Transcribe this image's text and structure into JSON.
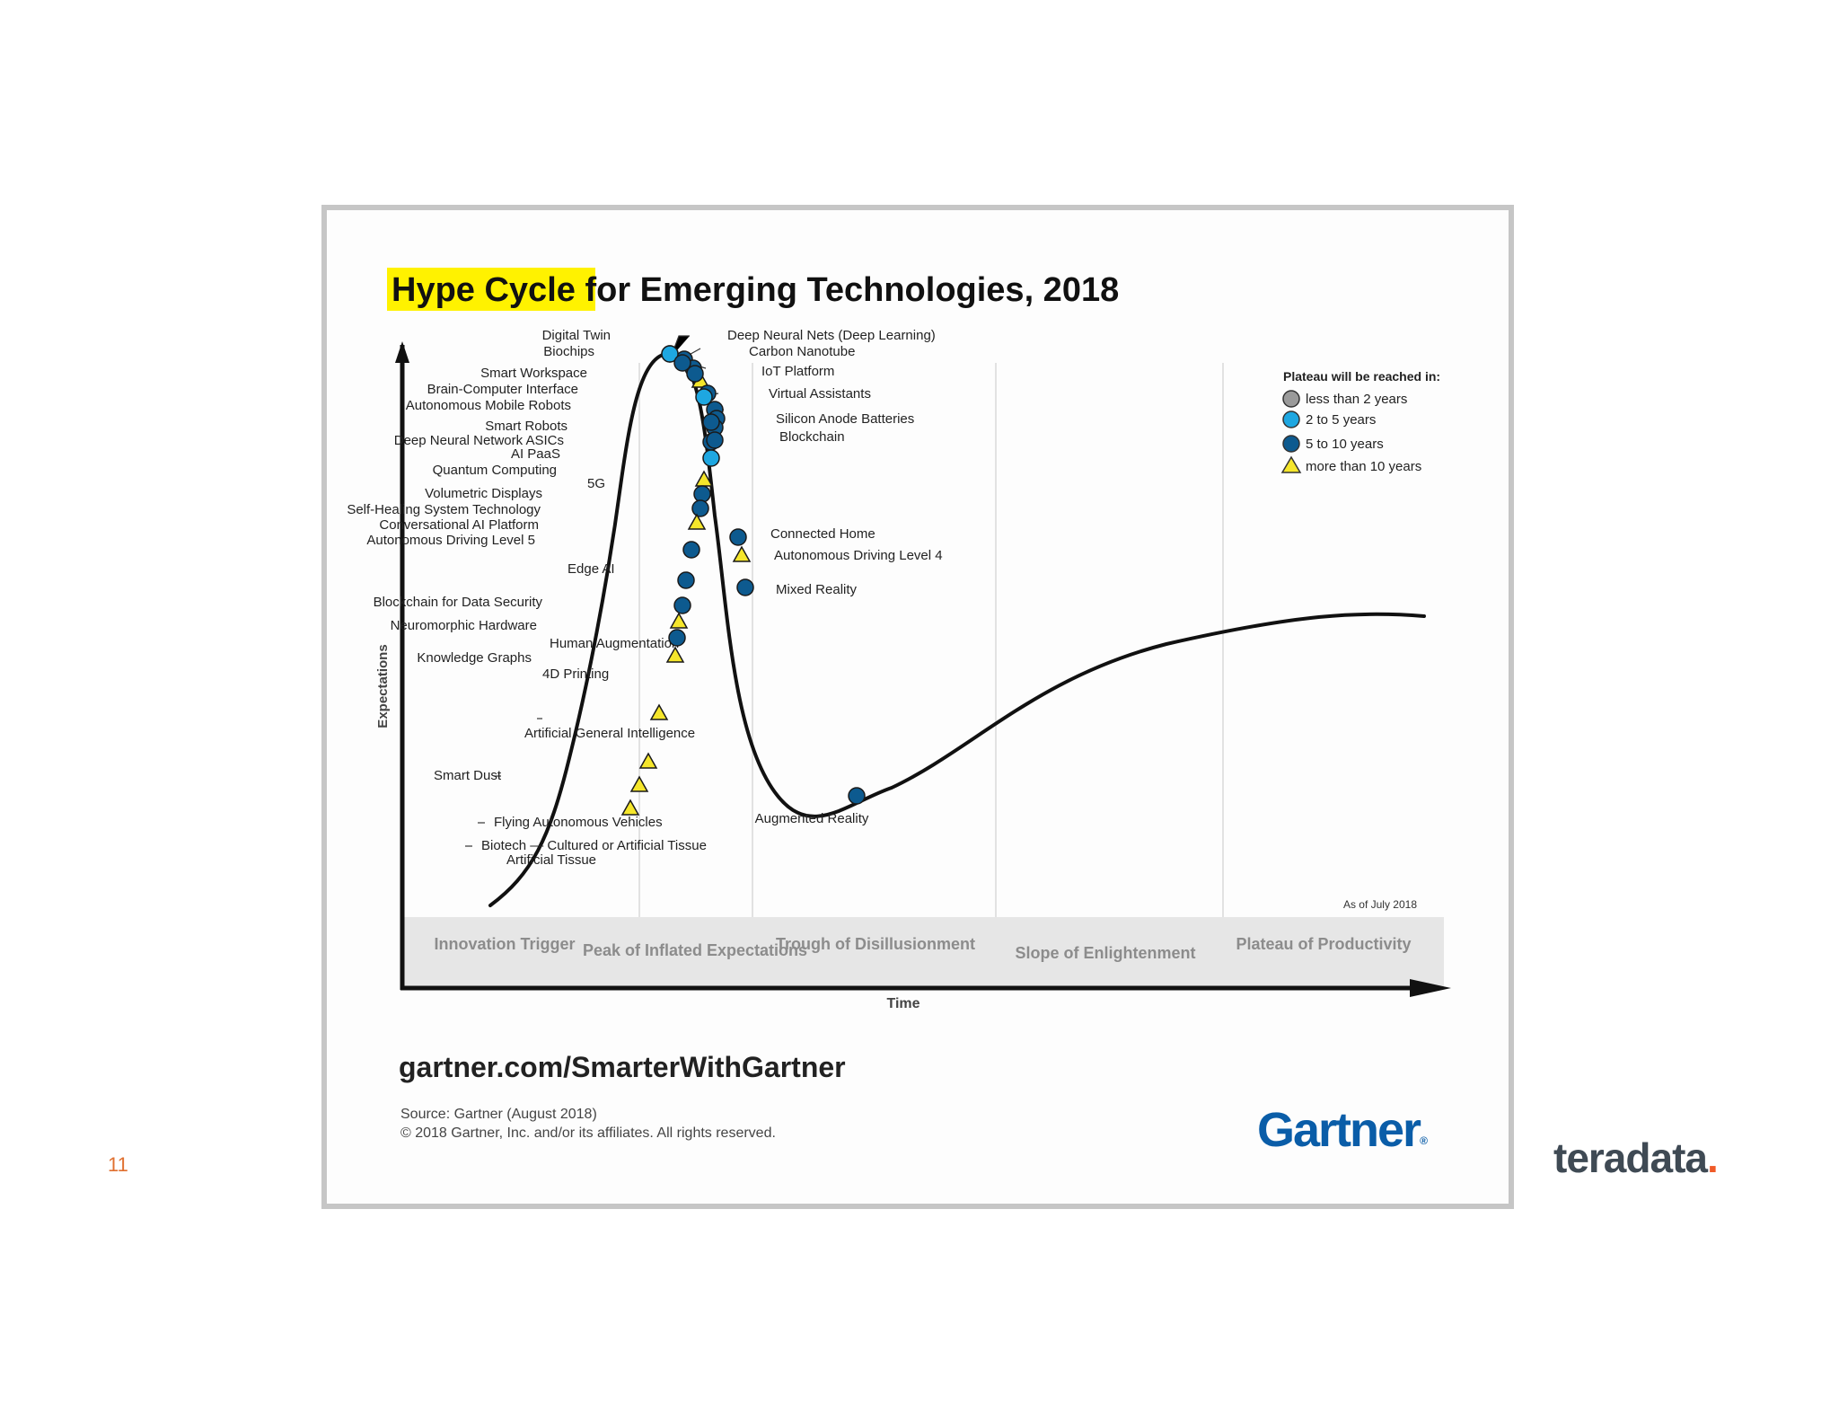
{
  "slide": {
    "number": "11",
    "brand_name": "teradata",
    "brand_dot": "."
  },
  "chart": {
    "title_highlight": "Hype Cycle",
    "title_rest": " for Emerging Technologies, 2018",
    "y_label": "Expectations",
    "x_label": "Time",
    "as_of": "As of July 2018",
    "phases": [
      "Innovation Trigger",
      "Peak of Inflated Expectations",
      "Trough of Disillusionment",
      "Slope of Enlightenment",
      "Plateau of Productivity"
    ],
    "legend": {
      "title": "Plateau will be reached in:",
      "items": [
        {
          "label": "less than 2 years",
          "marker": "circle",
          "color": "#9a9a9a"
        },
        {
          "label": "2 to 5 years",
          "marker": "circle",
          "color": "#1ea7e1"
        },
        {
          "label": "5 to 10 years",
          "marker": "circle",
          "color": "#0d5a8f"
        },
        {
          "label": "more than 10 years",
          "marker": "triangle",
          "color": "#f5e62b"
        }
      ]
    },
    "url": "gartner.com/SmarterWithGartner",
    "source": "Source: Gartner (August 2018)",
    "copyright": "© 2018 Gartner, Inc. and/or its affiliates. All rights reserved.",
    "logo": "Gartner",
    "colors": {
      "highlight": "#fff200",
      "dark_blue": "#0d5a8f",
      "light_blue": "#1ea7e1",
      "yellow": "#f5e62b",
      "gray": "#9a9a9a",
      "phase_band": "#e6e6e6"
    }
  },
  "chart_data": {
    "type": "hype-cycle",
    "title": "Hype Cycle for Emerging Technologies, 2018",
    "xlabel": "Time",
    "ylabel": "Expectations",
    "technologies": [
      {
        "name": "Digital Twin",
        "phase": "Peak of Inflated Expectations",
        "plateau": "5 to 10 years"
      },
      {
        "name": "Biochips",
        "phase": "Peak of Inflated Expectations",
        "plateau": "5 to 10 years"
      },
      {
        "name": "Smart Workspace",
        "phase": "Peak of Inflated Expectations",
        "plateau": "5 to 10 years"
      },
      {
        "name": "Brain-Computer Interface",
        "phase": "Peak of Inflated Expectations",
        "plateau": "more than 10 years"
      },
      {
        "name": "Autonomous Mobile Robots",
        "phase": "Peak of Inflated Expectations",
        "plateau": "5 to 10 years"
      },
      {
        "name": "Smart Robots",
        "phase": "Peak of Inflated Expectations",
        "plateau": "5 to 10 years"
      },
      {
        "name": "Deep Neural Network ASICs",
        "phase": "Peak of Inflated Expectations",
        "plateau": "5 to 10 years"
      },
      {
        "name": "AI PaaS",
        "phase": "Peak of Inflated Expectations",
        "plateau": "5 to 10 years"
      },
      {
        "name": "Quantum Computing",
        "phase": "Peak of Inflated Expectations",
        "plateau": "5 to 10 years"
      },
      {
        "name": "5G",
        "phase": "Peak of Inflated Expectations",
        "plateau": "2 to 5 years"
      },
      {
        "name": "Volumetric Displays",
        "phase": "Peak of Inflated Expectations",
        "plateau": "more than 10 years"
      },
      {
        "name": "Self-Healing System Technology",
        "phase": "Peak of Inflated Expectations",
        "plateau": "5 to 10 years"
      },
      {
        "name": "Conversational AI Platform",
        "phase": "Peak of Inflated Expectations",
        "plateau": "5 to 10 years"
      },
      {
        "name": "Autonomous Driving Level 5",
        "phase": "Innovation Trigger",
        "plateau": "more than 10 years"
      },
      {
        "name": "Edge AI",
        "phase": "Innovation Trigger",
        "plateau": "5 to 10 years"
      },
      {
        "name": "Blockchain for Data Security",
        "phase": "Innovation Trigger",
        "plateau": "5 to 10 years"
      },
      {
        "name": "Neuromorphic Hardware",
        "phase": "Innovation Trigger",
        "plateau": "5 to 10 years"
      },
      {
        "name": "Human Augmentation",
        "phase": "Innovation Trigger",
        "plateau": "more than 10 years"
      },
      {
        "name": "Knowledge Graphs",
        "phase": "Innovation Trigger",
        "plateau": "5 to 10 years"
      },
      {
        "name": "4D Printing",
        "phase": "Innovation Trigger",
        "plateau": "more than 10 years"
      },
      {
        "name": "Artificial General Intelligence",
        "phase": "Innovation Trigger",
        "plateau": "more than 10 years"
      },
      {
        "name": "Smart Dust",
        "phase": "Innovation Trigger",
        "plateau": "more than 10 years"
      },
      {
        "name": "Flying Autonomous Vehicles",
        "phase": "Innovation Trigger",
        "plateau": "more than 10 years"
      },
      {
        "name": "Biotech — Cultured or Artificial Tissue",
        "phase": "Innovation Trigger",
        "plateau": "more than 10 years"
      },
      {
        "name": "Deep Neural Nets (Deep Learning)",
        "phase": "Peak of Inflated Expectations",
        "plateau": "2 to 5 years"
      },
      {
        "name": "Carbon Nanotube",
        "phase": "Peak of Inflated Expectations",
        "plateau": "5 to 10 years"
      },
      {
        "name": "IoT Platform",
        "phase": "Peak of Inflated Expectations",
        "plateau": "5 to 10 years"
      },
      {
        "name": "Virtual Assistants",
        "phase": "Peak of Inflated Expectations",
        "plateau": "2 to 5 years"
      },
      {
        "name": "Silicon Anode Batteries",
        "phase": "Peak of Inflated Expectations",
        "plateau": "5 to 10 years"
      },
      {
        "name": "Blockchain",
        "phase": "Peak of Inflated Expectations",
        "plateau": "5 to 10 years"
      },
      {
        "name": "Connected Home",
        "phase": "Trough of Disillusionment",
        "plateau": "5 to 10 years"
      },
      {
        "name": "Autonomous Driving Level 4",
        "phase": "Trough of Disillusionment",
        "plateau": "more than 10 years"
      },
      {
        "name": "Mixed Reality",
        "phase": "Trough of Disillusionment",
        "plateau": "5 to 10 years"
      },
      {
        "name": "Augmented Reality",
        "phase": "Trough of Disillusionment",
        "plateau": "5 to 10 years"
      }
    ]
  }
}
